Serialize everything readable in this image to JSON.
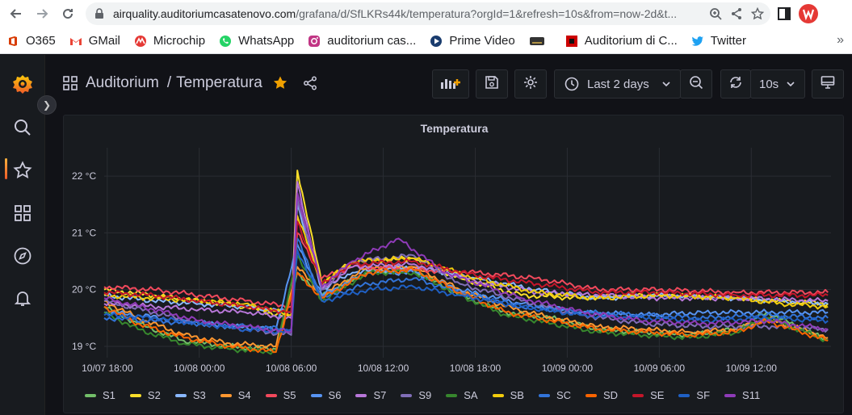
{
  "browser": {
    "url_host": "airquality.auditoriumcasatenovo.com",
    "url_path": "/grafana/d/SfLKRs44k/temperatura?orgId=1&refresh=10s&from=now-2d&t...",
    "bookmarks": [
      {
        "label": "O365",
        "icon": "office-icon",
        "color": "#d83b01"
      },
      {
        "label": "GMail",
        "icon": "gmail-icon",
        "color": "#ea4335"
      },
      {
        "label": "Microchip",
        "icon": "microchip-icon",
        "color": "#e53935"
      },
      {
        "label": "WhatsApp",
        "icon": "whatsapp-icon",
        "color": "#25d366"
      },
      {
        "label": "auditorium cas...",
        "icon": "instagram-icon",
        "color": "#c13584"
      },
      {
        "label": "Prime Video",
        "icon": "prime-video-icon",
        "color": "#1a98ff"
      },
      {
        "label": "",
        "icon": "bookmark-icon",
        "color": "#333333"
      },
      {
        "label": "Auditorium di C...",
        "icon": "auditorium-icon",
        "color": "#cc0000"
      },
      {
        "label": "Twitter",
        "icon": "twitter-icon",
        "color": "#1da1f2"
      }
    ]
  },
  "dashboard": {
    "folder": "Auditorium",
    "separator": "/",
    "title": "Temperatura",
    "time_range": "Last 2 days",
    "refresh": "10s",
    "accent": "#f0a000"
  },
  "panel": {
    "title": "Temperatura"
  },
  "chart_data": {
    "type": "line",
    "title": "Temperatura",
    "y_ticks": [
      "22 °C",
      "21 °C",
      "20 °C",
      "19 °C"
    ],
    "y_tick_values": [
      22,
      21,
      20,
      19
    ],
    "ylim": [
      18.8,
      22.5
    ],
    "x_ticks": [
      "10/07 18:00",
      "10/08 00:00",
      "10/08 06:00",
      "10/08 12:00",
      "10/08 18:00",
      "10/09 00:00",
      "10/09 06:00",
      "10/09 12:00"
    ],
    "x_tick_hours": [
      0,
      6,
      12,
      18,
      24,
      30,
      36,
      42
    ],
    "xlim_hours": [
      -0.2,
      47.2
    ],
    "grid": true,
    "legend_position": "bottom",
    "series": [
      {
        "name": "S1",
        "color": "#73bf69",
        "values": [
          [
            -0.2,
            19.7
          ],
          [
            2,
            19.4
          ],
          [
            5,
            19.1
          ],
          [
            8,
            19.0
          ],
          [
            11,
            18.95
          ],
          [
            12.4,
            20.3
          ],
          [
            14,
            19.9
          ],
          [
            17,
            20.3
          ],
          [
            20,
            20.35
          ],
          [
            23,
            19.9
          ],
          [
            26,
            19.6
          ],
          [
            29,
            19.5
          ],
          [
            32,
            19.3
          ],
          [
            35,
            19.25
          ],
          [
            38,
            19.2
          ],
          [
            41,
            19.3
          ],
          [
            43,
            19.6
          ],
          [
            47,
            19.1
          ]
        ]
      },
      {
        "name": "S2",
        "color": "#fade2a",
        "values": [
          [
            -0.2,
            20.0
          ],
          [
            3,
            19.9
          ],
          [
            6,
            19.8
          ],
          [
            9,
            19.7
          ],
          [
            12,
            19.5
          ],
          [
            12.4,
            22.1
          ],
          [
            14,
            20.1
          ],
          [
            16,
            20.5
          ],
          [
            20,
            20.55
          ],
          [
            23,
            20.2
          ],
          [
            27,
            19.9
          ],
          [
            31,
            19.85
          ],
          [
            34,
            19.9
          ],
          [
            37,
            19.9
          ],
          [
            41,
            19.85
          ],
          [
            44,
            19.8
          ],
          [
            47,
            19.75
          ]
        ]
      },
      {
        "name": "S3",
        "color": "#8ab8ff",
        "values": [
          [
            -0.2,
            19.9
          ],
          [
            3,
            19.8
          ],
          [
            6,
            19.75
          ],
          [
            9,
            19.7
          ],
          [
            12,
            19.6
          ],
          [
            12.4,
            21.5
          ],
          [
            14,
            20.0
          ],
          [
            16,
            20.3
          ],
          [
            20,
            20.4
          ],
          [
            24,
            20.2
          ],
          [
            28,
            20.0
          ],
          [
            32,
            19.85
          ],
          [
            36,
            19.9
          ],
          [
            41,
            19.85
          ],
          [
            44,
            19.8
          ],
          [
            47,
            19.75
          ]
        ]
      },
      {
        "name": "S4",
        "color": "#ff9830",
        "values": [
          [
            -0.2,
            19.8
          ],
          [
            2,
            19.5
          ],
          [
            5,
            19.2
          ],
          [
            8,
            19.05
          ],
          [
            11,
            19.0
          ],
          [
            12.4,
            20.4
          ],
          [
            14,
            19.9
          ],
          [
            17,
            20.4
          ],
          [
            20,
            20.4
          ],
          [
            23,
            20.0
          ],
          [
            26,
            19.7
          ],
          [
            29,
            19.5
          ],
          [
            32,
            19.35
          ],
          [
            35,
            19.3
          ],
          [
            38,
            19.25
          ],
          [
            41,
            19.3
          ],
          [
            43,
            19.5
          ],
          [
            47,
            19.15
          ]
        ]
      },
      {
        "name": "S5",
        "color": "#f2495c",
        "values": [
          [
            -0.2,
            20.05
          ],
          [
            3,
            20.0
          ],
          [
            6,
            19.9
          ],
          [
            9,
            19.8
          ],
          [
            12,
            19.7
          ],
          [
            12.4,
            21.0
          ],
          [
            14,
            20.2
          ],
          [
            16,
            20.4
          ],
          [
            20,
            20.35
          ],
          [
            24,
            20.3
          ],
          [
            28,
            20.2
          ],
          [
            32,
            20.0
          ],
          [
            36,
            20.0
          ],
          [
            41,
            19.95
          ],
          [
            47,
            19.95
          ]
        ]
      },
      {
        "name": "S6",
        "color": "#5794f2",
        "values": [
          [
            -0.2,
            19.6
          ],
          [
            2,
            19.55
          ],
          [
            5,
            19.45
          ],
          [
            8,
            19.35
          ],
          [
            11,
            19.3
          ],
          [
            12.4,
            20.8
          ],
          [
            14,
            19.9
          ],
          [
            17,
            20.3
          ],
          [
            20,
            20.3
          ],
          [
            23,
            20.0
          ],
          [
            27,
            19.75
          ],
          [
            31,
            19.6
          ],
          [
            35,
            19.55
          ],
          [
            39,
            19.6
          ],
          [
            43,
            19.6
          ],
          [
            47,
            19.6
          ]
        ]
      },
      {
        "name": "S7",
        "color": "#b877d9",
        "values": [
          [
            -0.2,
            19.75
          ],
          [
            3,
            19.7
          ],
          [
            6,
            19.65
          ],
          [
            9,
            19.6
          ],
          [
            12,
            19.5
          ],
          [
            12.4,
            21.9
          ],
          [
            14,
            20.0
          ],
          [
            16,
            20.4
          ],
          [
            20,
            20.45
          ],
          [
            24,
            20.15
          ],
          [
            28,
            19.95
          ],
          [
            32,
            19.9
          ],
          [
            36,
            19.85
          ],
          [
            41,
            19.85
          ],
          [
            47,
            19.8
          ]
        ]
      },
      {
        "name": "S9",
        "color": "#806eb7",
        "values": [
          [
            -0.2,
            19.8
          ],
          [
            3,
            19.6
          ],
          [
            6,
            19.4
          ],
          [
            9,
            19.3
          ],
          [
            12,
            19.2
          ],
          [
            12.4,
            21.6
          ],
          [
            14,
            20.0
          ],
          [
            16,
            20.5
          ],
          [
            20,
            20.6
          ],
          [
            23,
            20.1
          ],
          [
            27,
            19.8
          ],
          [
            31,
            19.55
          ],
          [
            35,
            19.4
          ],
          [
            39,
            19.35
          ],
          [
            43,
            19.35
          ],
          [
            47,
            19.3
          ]
        ]
      },
      {
        "name": "SA",
        "color": "#37872d",
        "values": [
          [
            -0.2,
            19.6
          ],
          [
            2,
            19.3
          ],
          [
            5,
            19.05
          ],
          [
            8,
            18.95
          ],
          [
            11,
            18.9
          ],
          [
            12.4,
            20.6
          ],
          [
            14,
            19.8
          ],
          [
            17,
            20.3
          ],
          [
            20,
            20.3
          ],
          [
            23,
            19.9
          ],
          [
            26,
            19.55
          ],
          [
            29,
            19.4
          ],
          [
            32,
            19.25
          ],
          [
            35,
            19.2
          ],
          [
            38,
            19.15
          ],
          [
            41,
            19.25
          ],
          [
            43,
            19.5
          ],
          [
            47,
            19.1
          ]
        ]
      },
      {
        "name": "SB",
        "color": "#f2cc0c",
        "values": [
          [
            -0.2,
            19.9
          ],
          [
            3,
            19.85
          ],
          [
            6,
            19.8
          ],
          [
            9,
            19.75
          ],
          [
            12,
            19.55
          ],
          [
            12.4,
            21.3
          ],
          [
            14,
            20.1
          ],
          [
            16,
            20.5
          ],
          [
            20,
            20.55
          ],
          [
            24,
            20.2
          ],
          [
            28,
            19.95
          ],
          [
            32,
            19.85
          ],
          [
            36,
            19.9
          ],
          [
            41,
            19.85
          ],
          [
            44,
            19.75
          ],
          [
            47,
            19.7
          ]
        ]
      },
      {
        "name": "SC",
        "color": "#3274d9",
        "values": [
          [
            -0.2,
            19.5
          ],
          [
            3,
            19.45
          ],
          [
            6,
            19.4
          ],
          [
            9,
            19.35
          ],
          [
            12,
            19.3
          ],
          [
            12.4,
            20.9
          ],
          [
            14,
            19.85
          ],
          [
            17,
            20.1
          ],
          [
            20,
            20.2
          ],
          [
            23,
            19.95
          ],
          [
            27,
            19.7
          ],
          [
            31,
            19.6
          ],
          [
            35,
            19.55
          ],
          [
            39,
            19.5
          ],
          [
            43,
            19.55
          ],
          [
            47,
            19.5
          ]
        ]
      },
      {
        "name": "SD",
        "color": "#fa6400",
        "values": [
          [
            -0.2,
            19.7
          ],
          [
            2,
            19.4
          ],
          [
            5,
            19.15
          ],
          [
            8,
            19.0
          ],
          [
            11,
            18.9
          ],
          [
            12.4,
            20.3
          ],
          [
            14,
            19.85
          ],
          [
            17,
            20.3
          ],
          [
            20,
            20.35
          ],
          [
            23,
            19.95
          ],
          [
            26,
            19.6
          ],
          [
            29,
            19.45
          ],
          [
            32,
            19.3
          ],
          [
            35,
            19.25
          ],
          [
            38,
            19.2
          ],
          [
            41,
            19.25
          ],
          [
            43,
            19.45
          ],
          [
            47,
            19.1
          ]
        ]
      },
      {
        "name": "SE",
        "color": "#c4162a",
        "values": [
          [
            -0.2,
            19.95
          ],
          [
            3,
            19.9
          ],
          [
            6,
            19.8
          ],
          [
            9,
            19.7
          ],
          [
            12,
            19.6
          ],
          [
            12.4,
            21.2
          ],
          [
            14,
            20.1
          ],
          [
            16,
            20.45
          ],
          [
            20,
            20.5
          ],
          [
            24,
            20.25
          ],
          [
            28,
            20.1
          ],
          [
            32,
            19.95
          ],
          [
            36,
            19.95
          ],
          [
            41,
            19.9
          ],
          [
            47,
            19.9
          ]
        ]
      },
      {
        "name": "SF",
        "color": "#1f60c4",
        "values": [
          [
            -0.2,
            19.55
          ],
          [
            3,
            19.5
          ],
          [
            6,
            19.4
          ],
          [
            9,
            19.3
          ],
          [
            12,
            19.25
          ],
          [
            12.4,
            20.7
          ],
          [
            14,
            19.8
          ],
          [
            17,
            20.0
          ],
          [
            20,
            20.05
          ],
          [
            23,
            19.9
          ],
          [
            27,
            19.7
          ],
          [
            31,
            19.55
          ],
          [
            35,
            19.5
          ],
          [
            39,
            19.45
          ],
          [
            43,
            19.5
          ],
          [
            47,
            19.45
          ]
        ]
      },
      {
        "name": "S11",
        "color": "#8f3bb8",
        "values": [
          [
            -0.2,
            19.85
          ],
          [
            3,
            19.65
          ],
          [
            6,
            19.45
          ],
          [
            9,
            19.35
          ],
          [
            12,
            19.25
          ],
          [
            12.4,
            21.7
          ],
          [
            14,
            20.05
          ],
          [
            16,
            20.5
          ],
          [
            19,
            20.9
          ],
          [
            22,
            20.3
          ],
          [
            27,
            19.85
          ],
          [
            31,
            19.6
          ],
          [
            35,
            19.45
          ],
          [
            39,
            19.4
          ],
          [
            43,
            19.45
          ],
          [
            47,
            19.3
          ]
        ]
      }
    ]
  }
}
